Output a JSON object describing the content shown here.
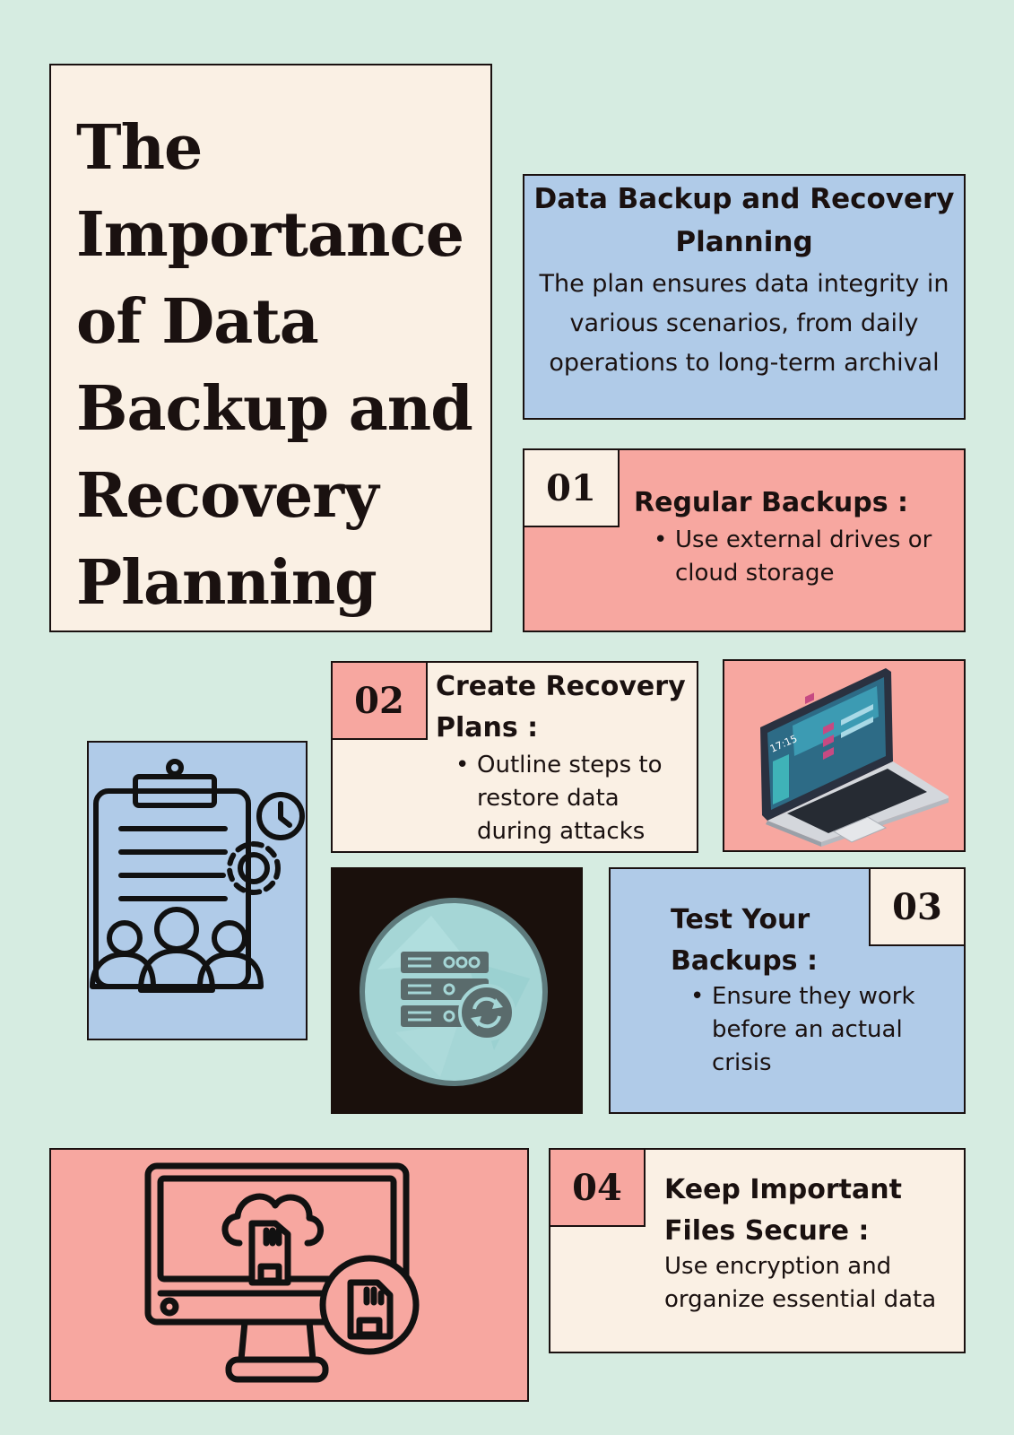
{
  "title": {
    "lines": [
      "The",
      "Importance",
      "of Data",
      "Backup and",
      "Recovery",
      "Planning"
    ]
  },
  "intro": {
    "heading": "Data Backup and Recovery Planning",
    "text": "The plan ensures data integrity in various scenarios, from daily operations to long-term archival"
  },
  "steps": [
    {
      "number": "01",
      "heading": "Regular Backups :",
      "bullets": [
        "Use external drives or cloud storage"
      ]
    },
    {
      "number": "02",
      "heading": "Create Recovery Plans :",
      "bullets": [
        "Outline steps to restore data during attacks"
      ]
    },
    {
      "number": "03",
      "heading": "Test Your Backups :",
      "bullets": [
        "Ensure they work before an actual crisis"
      ]
    },
    {
      "number": "04",
      "heading": "Keep Important Files Secure :",
      "text": "Use encryption and organize essential data"
    }
  ],
  "laptop_screen_time": "17:15",
  "icons": {
    "clipboard": "clipboard-team-gear-clock-icon",
    "server": "server-sync-icon",
    "laptop": "laptop-dashboard-icon",
    "monitor": "monitor-cloud-sd-card-icon"
  },
  "colors": {
    "background": "#d6ece1",
    "cream": "#faf0e4",
    "blue": "#b0cbe8",
    "pink": "#f7a7a0",
    "dark": "#1a100c"
  }
}
